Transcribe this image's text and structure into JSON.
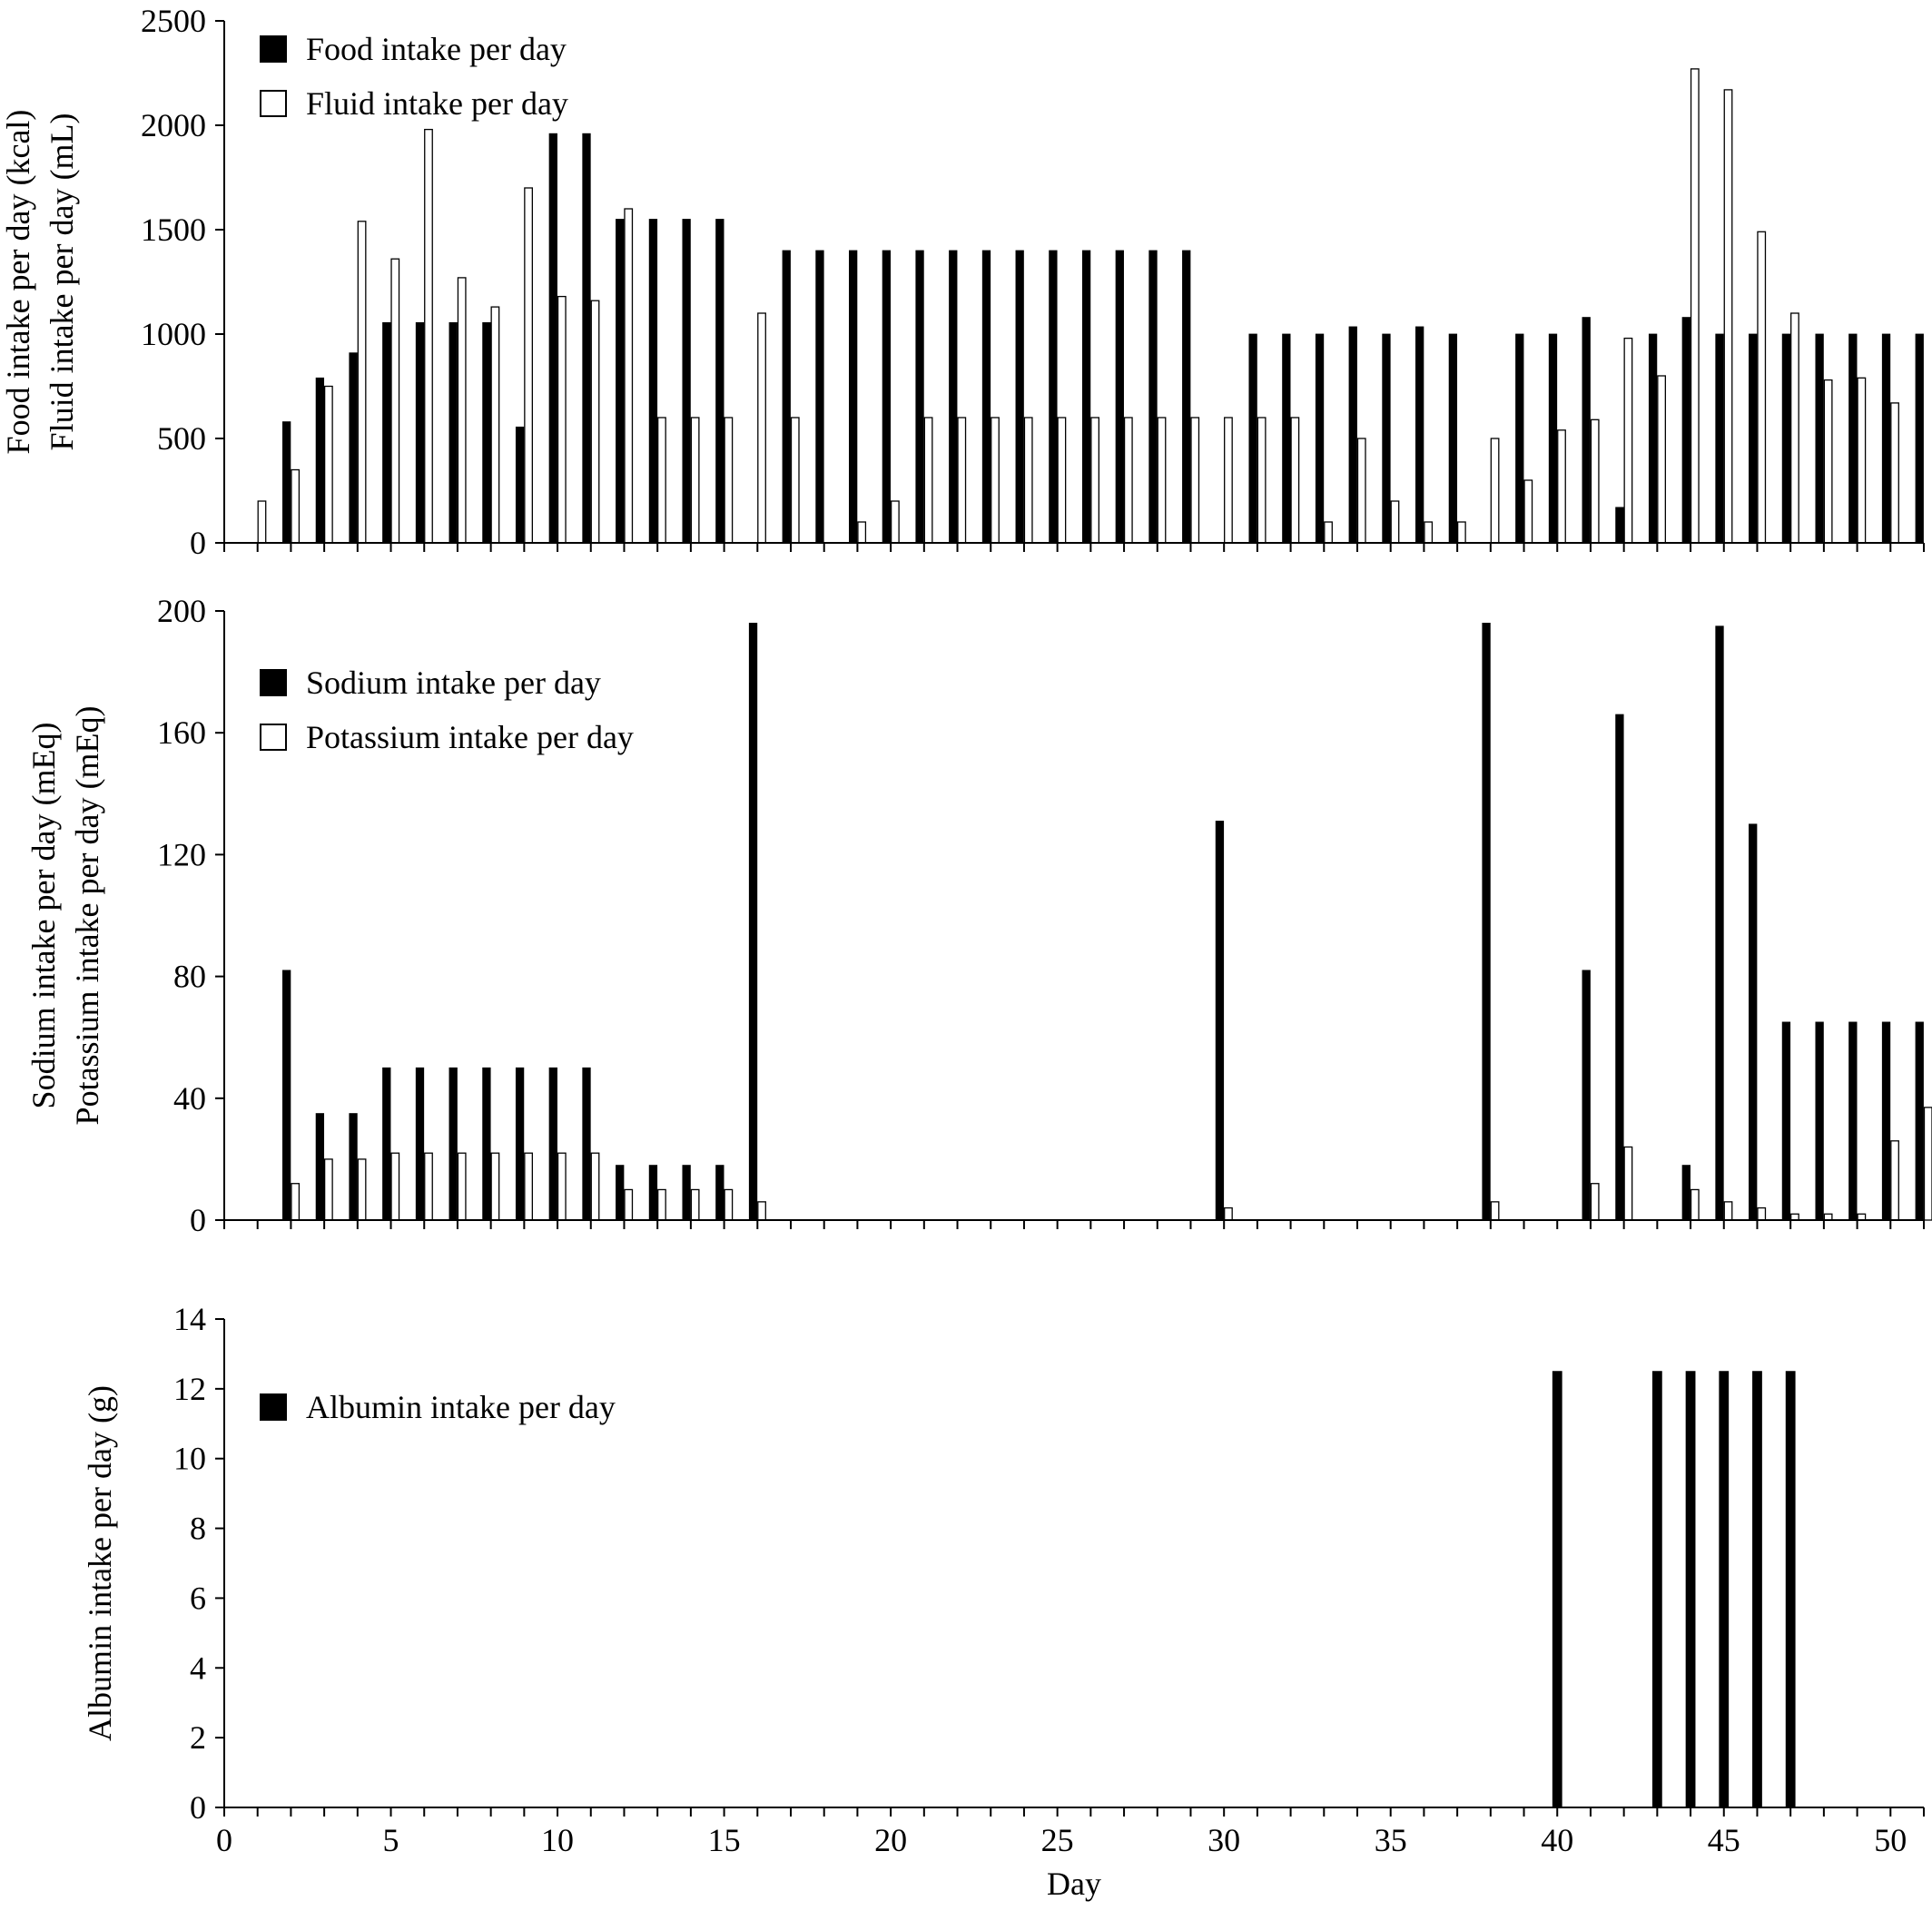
{
  "chart_data": [
    {
      "type": "bar",
      "ylabel": [
        "Food intake per day (kcal)",
        "Fluid intake per day (mL)"
      ],
      "ylim": [
        0,
        2500
      ],
      "yticks": [
        0,
        500,
        1000,
        1500,
        2000,
        2500
      ],
      "x": [
        1,
        2,
        3,
        4,
        5,
        6,
        7,
        8,
        9,
        10,
        11,
        12,
        13,
        14,
        15,
        16,
        17,
        18,
        19,
        20,
        21,
        22,
        23,
        24,
        25,
        26,
        27,
        28,
        29,
        30,
        31,
        32,
        33,
        34,
        35,
        36,
        37,
        38,
        39,
        40,
        41,
        42,
        43,
        44,
        45,
        46,
        47,
        48,
        49,
        50,
        51
      ],
      "legend_position": "top-left",
      "series": [
        {
          "name": "Food intake per day",
          "fill": "#000000",
          "values": [
            0,
            580,
            790,
            910,
            1055,
            1055,
            1055,
            1055,
            555,
            1960,
            1960,
            1550,
            1550,
            1550,
            1550,
            0,
            1400,
            1400,
            1400,
            1400,
            1400,
            1400,
            1400,
            1400,
            1400,
            1400,
            1400,
            1400,
            1400,
            0,
            1000,
            1000,
            1000,
            1035,
            1000,
            1035,
            1000,
            0,
            1000,
            1000,
            1080,
            170,
            1000,
            1080,
            1000,
            1000,
            1000,
            1000,
            1000,
            1000,
            1000
          ]
        },
        {
          "name": "Fluid intake per day",
          "fill": "#ffffff",
          "values": [
            200,
            350,
            750,
            1540,
            1360,
            1980,
            1270,
            1130,
            1700,
            1180,
            1160,
            1600,
            600,
            600,
            600,
            1100,
            600,
            0,
            100,
            200,
            600,
            600,
            600,
            600,
            600,
            600,
            600,
            600,
            600,
            600,
            600,
            600,
            100,
            500,
            200,
            100,
            100,
            500,
            300,
            540,
            590,
            980,
            800,
            2270,
            2170,
            1490,
            1100,
            780,
            790,
            670,
            0
          ]
        }
      ]
    },
    {
      "type": "bar",
      "ylabel": [
        "Sodium intake per day (mEq)",
        "Potassium intake per day (mEq)"
      ],
      "ylim": [
        0,
        200
      ],
      "yticks": [
        0,
        40,
        80,
        120,
        160,
        200
      ],
      "x": [
        1,
        2,
        3,
        4,
        5,
        6,
        7,
        8,
        9,
        10,
        11,
        12,
        13,
        14,
        15,
        16,
        17,
        18,
        19,
        20,
        21,
        22,
        23,
        24,
        25,
        26,
        27,
        28,
        29,
        30,
        31,
        32,
        33,
        34,
        35,
        36,
        37,
        38,
        39,
        40,
        41,
        42,
        43,
        44,
        45,
        46,
        47,
        48,
        49,
        50,
        51
      ],
      "legend_position": "top-left",
      "series": [
        {
          "name": "Sodium intake per day",
          "fill": "#000000",
          "values": [
            0,
            82,
            35,
            35,
            50,
            50,
            50,
            50,
            50,
            50,
            50,
            18,
            18,
            18,
            18,
            196,
            0,
            0,
            0,
            0,
            0,
            0,
            0,
            0,
            0,
            0,
            0,
            0,
            0,
            131,
            0,
            0,
            0,
            0,
            0,
            0,
            0,
            196,
            0,
            0,
            82,
            166,
            0,
            18,
            195,
            130,
            65,
            65,
            65,
            65,
            65
          ]
        },
        {
          "name": "Potassium intake per day",
          "fill": "#ffffff",
          "values": [
            0,
            12,
            20,
            20,
            22,
            22,
            22,
            22,
            22,
            22,
            22,
            10,
            10,
            10,
            10,
            6,
            0,
            0,
            0,
            0,
            0,
            0,
            0,
            0,
            0,
            0,
            0,
            0,
            0,
            4,
            0,
            0,
            0,
            0,
            0,
            0,
            0,
            6,
            0,
            0,
            12,
            24,
            0,
            10,
            6,
            4,
            2,
            2,
            2,
            26,
            37
          ]
        }
      ]
    },
    {
      "type": "bar",
      "ylabel": [
        "Albumin intake per day (g)"
      ],
      "xlabel": "Day",
      "ylim": [
        0,
        14
      ],
      "yticks": [
        0,
        2,
        4,
        6,
        8,
        10,
        12,
        14
      ],
      "xlim": [
        0,
        51
      ],
      "xticks": [
        0,
        5,
        10,
        15,
        20,
        25,
        30,
        35,
        40,
        45,
        50
      ],
      "x": [
        1,
        2,
        3,
        4,
        5,
        6,
        7,
        8,
        9,
        10,
        11,
        12,
        13,
        14,
        15,
        16,
        17,
        18,
        19,
        20,
        21,
        22,
        23,
        24,
        25,
        26,
        27,
        28,
        29,
        30,
        31,
        32,
        33,
        34,
        35,
        36,
        37,
        38,
        39,
        40,
        41,
        42,
        43,
        44,
        45,
        46,
        47,
        48,
        49,
        50,
        51
      ],
      "legend_position": "top-left",
      "series": [
        {
          "name": "Albumin intake per day",
          "fill": "#000000",
          "values": [
            0,
            0,
            0,
            0,
            0,
            0,
            0,
            0,
            0,
            0,
            0,
            0,
            0,
            0,
            0,
            0,
            0,
            0,
            0,
            0,
            0,
            0,
            0,
            0,
            0,
            0,
            0,
            0,
            0,
            0,
            0,
            0,
            0,
            0,
            0,
            0,
            0,
            0,
            0,
            12.5,
            0,
            0,
            12.5,
            12.5,
            12.5,
            12.5,
            12.5,
            0,
            0,
            0,
            0
          ]
        }
      ]
    }
  ]
}
